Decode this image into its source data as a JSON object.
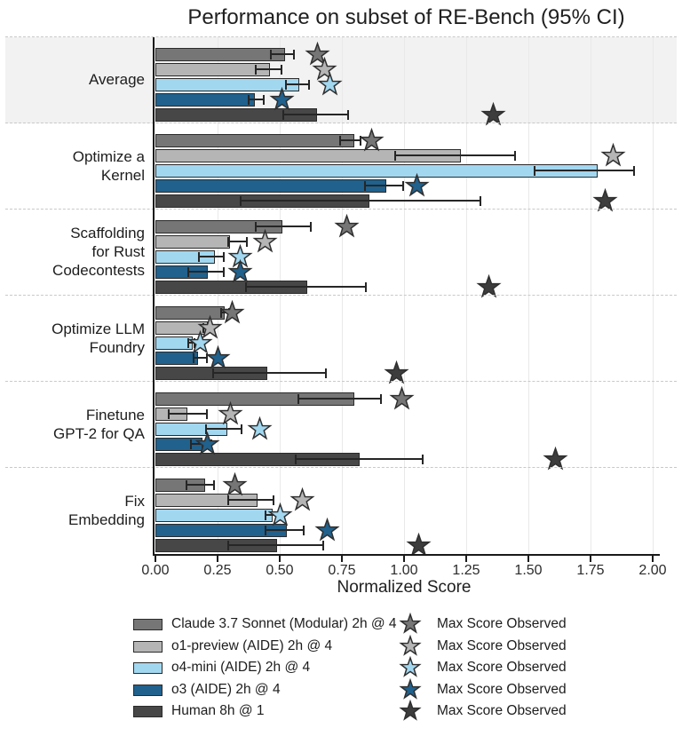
{
  "title": "Performance on subset of RE-Bench (95% CI)",
  "x_axis": {
    "label": "Normalized Score",
    "tick_labels": [
      "0.00",
      "0.25",
      "0.50",
      "0.75",
      "1.00",
      "1.25",
      "1.50",
      "1.75",
      "2.00"
    ],
    "tick_values": [
      0,
      0.25,
      0.5,
      0.75,
      1.0,
      1.25,
      1.5,
      1.75,
      2.0
    ]
  },
  "chart_data": {
    "type": "bar",
    "orientation": "horizontal",
    "title": "Performance on subset of RE-Bench (95% CI)",
    "xlabel": "Normalized Score",
    "xlim": [
      0,
      2.0
    ],
    "grid": true,
    "error_bars": "95% CI",
    "highlighted_category": "Average",
    "categories": [
      "Average",
      "Optimize a Kernel",
      "Scaffolding for Rust Codecontests",
      "Optimize LLM Foundry",
      "Finetune GPT-2 for QA",
      "Fix Embedding"
    ],
    "category_label_lines": [
      [
        "Average"
      ],
      [
        "Optimize a",
        "Kernel"
      ],
      [
        "Scaffolding",
        "for Rust",
        "Codecontests"
      ],
      [
        "Optimize LLM",
        "Foundry"
      ],
      [
        "Finetune",
        "GPT-2 for QA"
      ],
      [
        "Fix",
        "Embedding"
      ]
    ],
    "bar_edge_color": "#2b2b2b",
    "series": [
      {
        "name": "Claude 3.7 Sonnet (Modular) 2h @ 4",
        "color": "#767676",
        "star_color": "#767676",
        "values": [
          0.52,
          0.8,
          0.51,
          0.28,
          0.8,
          0.2
        ],
        "ci_low": [
          0.46,
          0.74,
          0.4,
          0.26,
          0.57,
          0.12
        ],
        "ci_high": [
          0.56,
          0.83,
          0.63,
          0.3,
          0.91,
          0.24
        ],
        "max_scores": [
          0.65,
          0.87,
          0.77,
          0.31,
          0.99,
          0.32
        ]
      },
      {
        "name": "o1-preview (AIDE) 2h @ 4",
        "color": "#b5b5b5",
        "star_color": "#b5b5b5",
        "values": [
          0.46,
          1.23,
          0.3,
          0.21,
          0.13,
          0.41
        ],
        "ci_low": [
          0.4,
          0.96,
          0.29,
          0.19,
          0.05,
          0.29
        ],
        "ci_high": [
          0.51,
          1.45,
          0.37,
          0.23,
          0.21,
          0.48
        ],
        "max_scores": [
          0.68,
          1.84,
          0.44,
          0.22,
          0.3,
          0.59
        ]
      },
      {
        "name": "o4-mini (AIDE) 2h @ 4",
        "color": "#a2d7f0",
        "star_color": "#a2d7f0",
        "values": [
          0.58,
          1.78,
          0.24,
          0.15,
          0.29,
          0.47
        ],
        "ci_low": [
          0.52,
          1.52,
          0.17,
          0.13,
          0.2,
          0.44
        ],
        "ci_high": [
          0.62,
          1.93,
          0.28,
          0.16,
          0.35,
          0.5
        ],
        "max_scores": [
          0.7,
          null,
          0.34,
          0.18,
          0.42,
          0.5
        ]
      },
      {
        "name": "o3 (AIDE) 2h @ 4",
        "color": "#20618d",
        "star_color": "#20618d",
        "values": [
          0.4,
          0.93,
          0.21,
          0.17,
          0.19,
          0.53
        ],
        "ci_low": [
          0.37,
          0.84,
          0.13,
          0.15,
          0.14,
          0.44
        ],
        "ci_high": [
          0.44,
          1.0,
          0.28,
          0.21,
          0.23,
          0.6
        ],
        "max_scores": [
          0.51,
          1.05,
          0.34,
          0.25,
          0.21,
          0.69
        ]
      },
      {
        "name": "Human 8h @ 1",
        "color": "#474747",
        "star_color": "#3d3d3d",
        "values": [
          0.65,
          0.86,
          0.61,
          0.45,
          0.82,
          0.49
        ],
        "ci_low": [
          0.51,
          0.34,
          0.36,
          0.23,
          0.56,
          0.29
        ],
        "ci_high": [
          0.78,
          1.31,
          0.85,
          0.69,
          1.08,
          0.68
        ],
        "max_scores": [
          1.36,
          1.81,
          1.34,
          0.97,
          1.61,
          1.06
        ]
      }
    ],
    "legend": {
      "bar_entries": [
        "Claude 3.7 Sonnet (Modular) 2h @ 4",
        "o1-preview (AIDE) 2h @ 4",
        "o4-mini (AIDE) 2h @ 4",
        "o3 (AIDE) 2h @ 4",
        "Human 8h @ 1"
      ],
      "star_entries": [
        "Max Score Observed",
        "Max Score Observed",
        "Max Score Observed",
        "Max Score Observed",
        "Max Score Observed"
      ]
    }
  }
}
